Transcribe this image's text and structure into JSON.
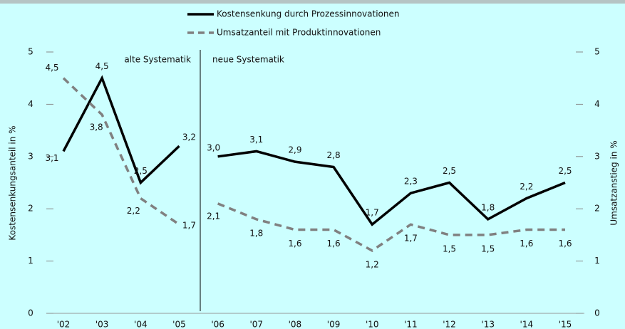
{
  "chart_data": {
    "type": "line",
    "categories": [
      "'02",
      "'03",
      "'04",
      "'05",
      "'06",
      "'07",
      "'08",
      "'09",
      "'10",
      "'11",
      "'12",
      "'13",
      "'14",
      "'15"
    ],
    "series": [
      {
        "name": "Kostensenkung durch Prozessinnovationen",
        "color": "#000000",
        "dash": false,
        "values": [
          3.1,
          4.5,
          2.5,
          3.2,
          3.0,
          3.1,
          2.9,
          2.8,
          1.7,
          2.3,
          2.5,
          1.8,
          2.2,
          2.5
        ],
        "value_labels": [
          "3,1",
          "4,5",
          "2,5",
          "3,2",
          "3,0",
          "3,1",
          "2,9",
          "2,8",
          "1,7",
          "2,3",
          "2,5",
          "1,8",
          "2,2",
          "2,5"
        ]
      },
      {
        "name": "Umsatzanteil mit Produktinnovationen",
        "color": "#808080",
        "dash": true,
        "axis": "y2",
        "values": [
          4.5,
          3.8,
          2.2,
          1.7,
          2.1,
          1.8,
          1.6,
          1.6,
          1.2,
          1.7,
          1.5,
          1.5,
          1.6,
          1.6
        ],
        "value_labels": [
          "4,5",
          "3,8",
          "2,2",
          "1,7",
          "2,1",
          "1,8",
          "1,6",
          "1,6",
          "1,2",
          "1,7",
          "1,5",
          "1,5",
          "1,6",
          "1,6"
        ]
      }
    ],
    "ylabel": "Kostensenkungsanteil in %",
    "y2label": "Umsatzanstieg in %",
    "ylim": [
      0,
      5
    ],
    "yticks": [
      0,
      1,
      2,
      3,
      4,
      5
    ],
    "y2lim": [
      0,
      5
    ],
    "y2ticks": [
      0,
      1,
      2,
      3,
      4,
      5
    ],
    "annotations": [
      "alte Systematik",
      "neue Systematik"
    ],
    "break_before": "'06"
  }
}
